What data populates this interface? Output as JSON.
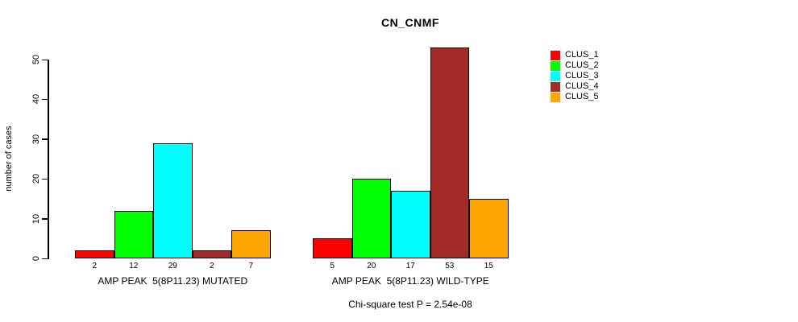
{
  "chart_data": {
    "type": "bar",
    "title": "CN_CNMF",
    "ylabel": "number of cases",
    "xlabel": "",
    "ylim": [
      0,
      50
    ],
    "yticks": [
      0,
      10,
      20,
      30,
      40,
      50
    ],
    "grid": false,
    "legend_position": "right-outside",
    "categories": [
      "CLUS_1",
      "CLUS_2",
      "CLUS_3",
      "CLUS_4",
      "CLUS_5"
    ],
    "groups": [
      {
        "label": "AMP PEAK  5(8P11.23) MUTATED",
        "values": [
          2,
          12,
          29,
          2,
          7
        ]
      },
      {
        "label": "AMP PEAK  5(8P11.23) WILD-TYPE",
        "values": [
          5,
          20,
          17,
          53,
          15
        ]
      }
    ],
    "series_colors": [
      "#FF0000",
      "#00FF00",
      "#00FFFF",
      "#A52A2A",
      "#FFA500"
    ],
    "legend": [
      {
        "label": "CLUS_1",
        "color": "#FF0000"
      },
      {
        "label": "CLUS_2",
        "color": "#00FF00"
      },
      {
        "label": "CLUS_3",
        "color": "#00FFFF"
      },
      {
        "label": "CLUS_4",
        "color": "#A52A2A"
      },
      {
        "label": "CLUS_5",
        "color": "#FFA500"
      }
    ],
    "footnote": "Chi-square test P = 2.54e-08",
    "axis_color": "#000000",
    "bar_border_color": "#000000"
  }
}
